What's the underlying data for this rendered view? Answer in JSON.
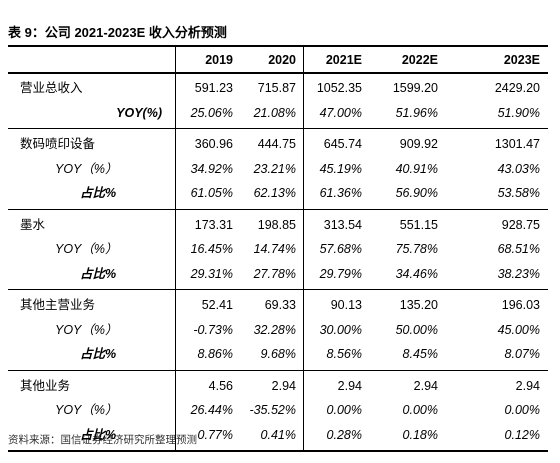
{
  "title": "表 9：公司 2021-2023E 收入分析预测",
  "table": {
    "header": [
      "2019",
      "2020",
      "2021E",
      "2022E",
      "2023E"
    ],
    "groups": [
      {
        "rows": [
          [
            "营业总收入",
            "591.23",
            "715.87",
            "1052.35",
            "1599.20",
            "2429.20"
          ],
          [
            "YOY(%)",
            "25.06%",
            "21.08%",
            "47.00%",
            "51.96%",
            "51.90%"
          ]
        ]
      },
      {
        "rows": [
          [
            "数码喷印设备",
            "360.96",
            "444.75",
            "645.74",
            "909.92",
            "1301.47"
          ],
          [
            "YOY（%）",
            "34.92%",
            "23.21%",
            "45.19%",
            "40.91%",
            "43.03%"
          ],
          [
            "占比%",
            "61.05%",
            "62.13%",
            "61.36%",
            "56.90%",
            "53.58%"
          ]
        ]
      },
      {
        "rows": [
          [
            "墨水",
            "173.31",
            "198.85",
            "313.54",
            "551.15",
            "928.75"
          ],
          [
            "YOY（%）",
            "16.45%",
            "14.74%",
            "57.68%",
            "75.78%",
            "68.51%"
          ],
          [
            "占比%",
            "29.31%",
            "27.78%",
            "29.79%",
            "34.46%",
            "38.23%"
          ]
        ]
      },
      {
        "rows": [
          [
            "其他主营业务",
            "52.41",
            "69.33",
            "90.13",
            "135.20",
            "196.03"
          ],
          [
            "YOY（%）",
            "-0.73%",
            "32.28%",
            "30.00%",
            "50.00%",
            "45.00%"
          ],
          [
            "占比%",
            "8.86%",
            "9.68%",
            "8.56%",
            "8.45%",
            "8.07%"
          ]
        ]
      },
      {
        "rows": [
          [
            "其他业务",
            "4.56",
            "2.94",
            "2.94",
            "2.94",
            "2.94"
          ],
          [
            "YOY（%）",
            "26.44%",
            "-35.52%",
            "0.00%",
            "0.00%",
            "0.00%"
          ],
          [
            "占比%",
            "0.77%",
            "0.41%",
            "0.28%",
            "0.18%",
            "0.12%"
          ]
        ]
      }
    ]
  },
  "source": "资料来源：国信证券经济研究所整理预测"
}
